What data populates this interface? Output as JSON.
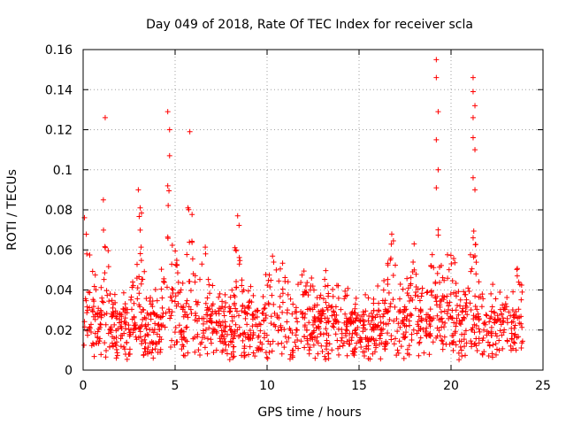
{
  "chart_data": {
    "type": "scatter",
    "title": "Day 049 of 2018, Rate Of TEC Index for receiver scla",
    "xlabel": "GPS time / hours",
    "ylabel": "ROTI / TECUs",
    "xlim": [
      0,
      25
    ],
    "ylim": [
      0,
      0.16
    ],
    "xticks": [
      0,
      5,
      10,
      15,
      20,
      25
    ],
    "xtick_labels": [
      "0",
      "5",
      "10",
      "15",
      "20",
      "25"
    ],
    "yticks": [
      0,
      0.02,
      0.04,
      0.06,
      0.08,
      0.1,
      0.12,
      0.14,
      0.16
    ],
    "ytick_labels": [
      "0",
      "0.02",
      "0.04",
      "0.06",
      "0.08",
      "0.1",
      "0.12",
      "0.14",
      "0.16"
    ],
    "grid": true,
    "marker": "+",
    "color": "#ff0000",
    "data_span_hours": [
      0,
      23.9
    ],
    "baseline_roti": [
      0.005,
      0.03
    ],
    "peaks": [
      {
        "x": 0.2,
        "y": 0.058
      },
      {
        "x": 1.2,
        "y": 0.126
      },
      {
        "x": 1.1,
        "y": 0.085
      },
      {
        "x": 3.0,
        "y": 0.09
      },
      {
        "x": 3.1,
        "y": 0.081
      },
      {
        "x": 4.6,
        "y": 0.129
      },
      {
        "x": 4.7,
        "y": 0.12
      },
      {
        "x": 4.7,
        "y": 0.107
      },
      {
        "x": 4.6,
        "y": 0.092
      },
      {
        "x": 5.8,
        "y": 0.119
      },
      {
        "x": 5.7,
        "y": 0.081
      },
      {
        "x": 8.4,
        "y": 0.077
      },
      {
        "x": 8.3,
        "y": 0.06
      },
      {
        "x": 10.5,
        "y": 0.05
      },
      {
        "x": 16.7,
        "y": 0.055
      },
      {
        "x": 18.0,
        "y": 0.05
      },
      {
        "x": 19.2,
        "y": 0.155
      },
      {
        "x": 19.2,
        "y": 0.146
      },
      {
        "x": 19.3,
        "y": 0.129
      },
      {
        "x": 19.2,
        "y": 0.115
      },
      {
        "x": 19.3,
        "y": 0.1
      },
      {
        "x": 19.2,
        "y": 0.091
      },
      {
        "x": 19.3,
        "y": 0.07
      },
      {
        "x": 21.2,
        "y": 0.146
      },
      {
        "x": 21.2,
        "y": 0.139
      },
      {
        "x": 21.3,
        "y": 0.132
      },
      {
        "x": 21.2,
        "y": 0.126
      },
      {
        "x": 21.2,
        "y": 0.116
      },
      {
        "x": 21.3,
        "y": 0.11
      },
      {
        "x": 21.2,
        "y": 0.096
      },
      {
        "x": 21.3,
        "y": 0.09
      },
      {
        "x": 21.2,
        "y": 0.066
      },
      {
        "x": 21.3,
        "y": 0.057
      },
      {
        "x": 23.6,
        "y": 0.047
      }
    ]
  }
}
